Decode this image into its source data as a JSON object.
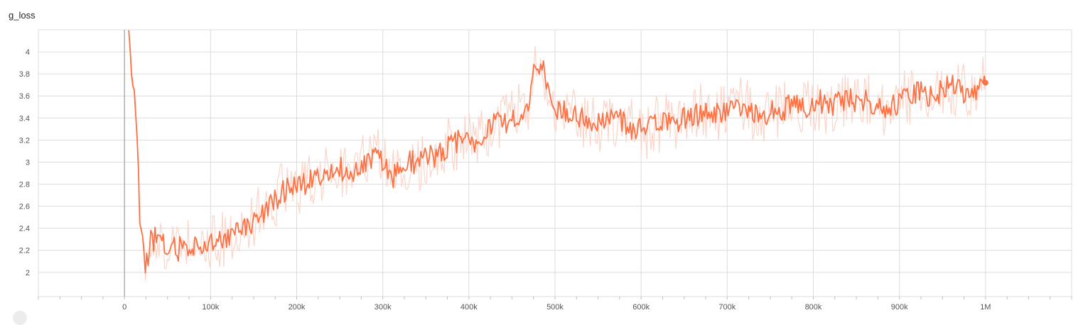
{
  "chart_data": {
    "type": "line",
    "title": "g_loss",
    "xlabel": "",
    "ylabel": "",
    "xlim": [
      -100000,
      1100000
    ],
    "ylim": [
      1.78,
      4.2
    ],
    "x_ticks": [
      0,
      100000,
      200000,
      300000,
      400000,
      500000,
      600000,
      700000,
      800000,
      900000,
      1000000
    ],
    "x_tick_labels": [
      "0",
      "100k",
      "200k",
      "300k",
      "400k",
      "500k",
      "600k",
      "700k",
      "800k",
      "900k",
      "1M"
    ],
    "y_ticks": [
      2,
      2.2,
      2.4,
      2.6,
      2.8,
      3,
      3.2,
      3.4,
      3.6,
      3.8,
      4
    ],
    "y_tick_labels": [
      "2",
      "2.2",
      "2.4",
      "2.6",
      "2.8",
      "3",
      "3.2",
      "3.4",
      "3.6",
      "3.8",
      "4"
    ],
    "grid": true,
    "legend": "none",
    "colors": {
      "smoothed": "#ff7043",
      "raw": "#fbd5c9",
      "grid": "#dcdcdc",
      "axis": "#9e9e9e"
    },
    "series": [
      {
        "role": "smoothed",
        "x": [
          5000,
          8000,
          12000,
          16000,
          18000,
          22000,
          24000,
          30000,
          36000,
          42000,
          48000,
          55000,
          62000,
          68000,
          75000,
          82000,
          90000,
          100000,
          110000,
          120000,
          130000,
          140000,
          150000,
          160000,
          170000,
          180000,
          190000,
          200000,
          210000,
          220000,
          230000,
          240000,
          250000,
          260000,
          270000,
          280000,
          290000,
          300000,
          310000,
          320000,
          330000,
          340000,
          350000,
          360000,
          370000,
          380000,
          390000,
          400000,
          410000,
          420000,
          430000,
          440000,
          450000,
          460000,
          470000,
          475000,
          480000,
          485000,
          490000,
          495000,
          500000,
          510000,
          520000,
          530000,
          540000,
          550000,
          560000,
          570000,
          580000,
          590000,
          600000,
          610000,
          620000,
          630000,
          640000,
          650000,
          660000,
          670000,
          680000,
          690000,
          700000,
          710000,
          720000,
          730000,
          740000,
          750000,
          760000,
          770000,
          780000,
          790000,
          800000,
          810000,
          820000,
          830000,
          840000,
          850000,
          860000,
          870000,
          880000,
          890000,
          900000,
          910000,
          920000,
          930000,
          940000,
          950000,
          960000,
          970000,
          980000,
          990000,
          1000000
        ],
        "y": [
          4.2,
          3.8,
          3.6,
          3.0,
          2.4,
          2.3,
          2.0,
          2.3,
          2.3,
          2.3,
          2.2,
          2.25,
          2.2,
          2.25,
          2.2,
          2.25,
          2.25,
          2.3,
          2.3,
          2.3,
          2.35,
          2.4,
          2.45,
          2.55,
          2.6,
          2.7,
          2.75,
          2.8,
          2.8,
          2.9,
          2.9,
          2.95,
          2.95,
          2.9,
          2.95,
          3.0,
          3.05,
          3.0,
          2.85,
          2.95,
          3.0,
          3.0,
          3.05,
          3.05,
          3.1,
          3.15,
          3.2,
          3.2,
          3.2,
          3.3,
          3.35,
          3.35,
          3.4,
          3.45,
          3.55,
          3.8,
          3.9,
          3.9,
          3.7,
          3.55,
          3.45,
          3.5,
          3.4,
          3.4,
          3.35,
          3.35,
          3.4,
          3.4,
          3.35,
          3.3,
          3.3,
          3.3,
          3.35,
          3.35,
          3.35,
          3.4,
          3.4,
          3.45,
          3.45,
          3.45,
          3.45,
          3.5,
          3.5,
          3.45,
          3.4,
          3.45,
          3.45,
          3.5,
          3.5,
          3.5,
          3.55,
          3.55,
          3.5,
          3.55,
          3.6,
          3.55,
          3.55,
          3.55,
          3.5,
          3.5,
          3.55,
          3.6,
          3.65,
          3.6,
          3.6,
          3.65,
          3.7,
          3.65,
          3.6,
          3.65,
          3.72
        ]
      }
    ]
  }
}
